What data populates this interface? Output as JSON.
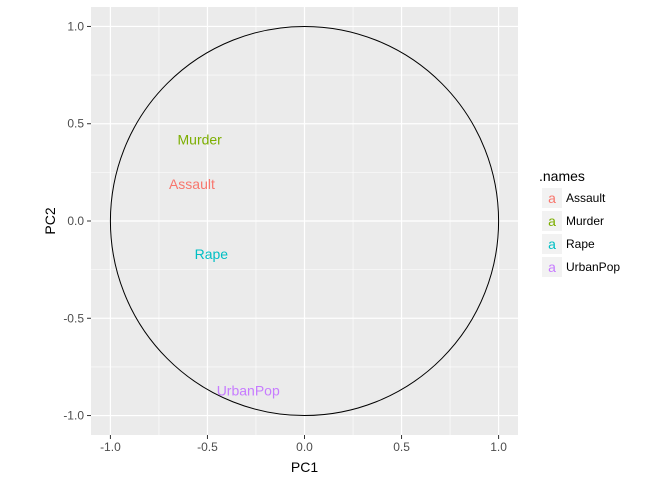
{
  "chart_data": {
    "type": "scatter",
    "title": "",
    "xlabel": "PC1",
    "ylabel": "PC2",
    "xlim": [
      -1.1,
      1.1
    ],
    "ylim": [
      -1.1,
      1.1
    ],
    "x_ticks": [
      -1.0,
      -0.5,
      0.0,
      0.5,
      1.0
    ],
    "x_tick_labels": [
      "-1.0",
      "-0.5",
      "0.0",
      "0.5",
      "1.0"
    ],
    "y_ticks": [
      -1.0,
      -0.5,
      0.0,
      0.5,
      1.0
    ],
    "y_tick_labels": [
      "-1.0",
      "-0.5",
      "0.0",
      "0.5",
      "1.0"
    ],
    "grid": true,
    "unit_circle": true,
    "points": [
      {
        "label": "Assault",
        "x": -0.58,
        "y": 0.19,
        "color": "#F8766D"
      },
      {
        "label": "Murder",
        "x": -0.54,
        "y": 0.42,
        "color": "#7CAE00"
      },
      {
        "label": "Rape",
        "x": -0.48,
        "y": -0.17,
        "color": "#00BFC4"
      },
      {
        "label": "UrbanPop",
        "x": -0.29,
        "y": -0.87,
        "color": "#C77CFF"
      }
    ],
    "legend": {
      "title": ".names",
      "position": "right",
      "key_glyph": "a",
      "entries": [
        {
          "label": "Assault",
          "color": "#F8766D"
        },
        {
          "label": "Murder",
          "color": "#7CAE00"
        },
        {
          "label": "Rape",
          "color": "#00BFC4"
        },
        {
          "label": "UrbanPop",
          "color": "#C77CFF"
        }
      ]
    },
    "panel_background": "#EBEBEB",
    "gridline_color": "#FFFFFF",
    "circle_color": "#000000"
  }
}
